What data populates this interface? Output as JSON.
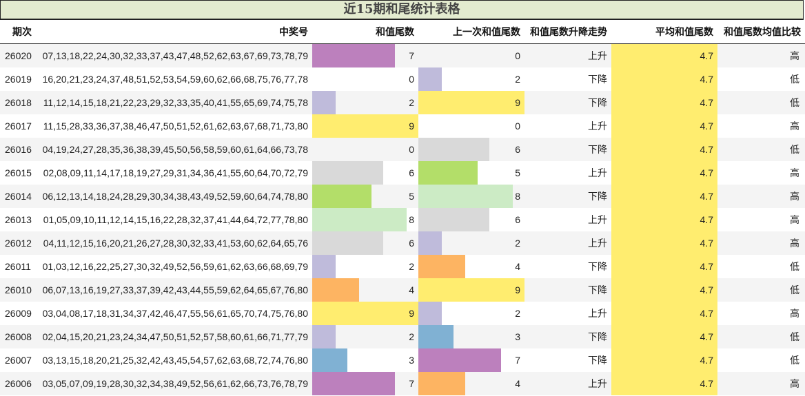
{
  "title": "近15期和尾统计表格",
  "headers": {
    "issue": "期次",
    "numbers": "中奖号",
    "tail": "和值尾数",
    "prev_tail": "上一次和值尾数",
    "trend": "和值尾数升降走势",
    "avg": "平均和值尾数",
    "compare": "和值尾数均值比较"
  },
  "bar_colors": {
    "0": "transparent",
    "2": "#bfbbdb",
    "3": "#80b1d3",
    "4": "#fdb462",
    "5": "#b3de69",
    "6": "#d9d9d9",
    "7": "#bc80bd",
    "8": "#ccebc5",
    "9": "#ffed6f"
  },
  "avg_color": "#ffed6f",
  "rows": [
    {
      "issue": "26020",
      "numbers": "07,13,18,22,24,30,32,33,37,43,47,48,52,62,63,67,69,73,78,79",
      "tail": 7,
      "prev_tail": 0,
      "trend": "上升",
      "avg": "4.7",
      "compare": "高"
    },
    {
      "issue": "26019",
      "numbers": "16,20,21,23,24,37,48,51,52,53,54,59,60,62,66,68,75,76,77,78",
      "tail": 0,
      "prev_tail": 2,
      "trend": "下降",
      "avg": "4.7",
      "compare": "低"
    },
    {
      "issue": "26018",
      "numbers": "11,12,14,15,18,21,22,23,29,32,33,35,40,41,55,65,69,74,75,78",
      "tail": 2,
      "prev_tail": 9,
      "trend": "下降",
      "avg": "4.7",
      "compare": "低"
    },
    {
      "issue": "26017",
      "numbers": "11,15,28,33,36,37,38,46,47,50,51,52,61,62,63,67,68,71,73,80",
      "tail": 9,
      "prev_tail": 0,
      "trend": "上升",
      "avg": "4.7",
      "compare": "高"
    },
    {
      "issue": "26016",
      "numbers": "04,19,24,27,28,35,36,38,39,45,50,56,58,59,60,61,64,66,73,78",
      "tail": 0,
      "prev_tail": 6,
      "trend": "下降",
      "avg": "4.7",
      "compare": "低"
    },
    {
      "issue": "26015",
      "numbers": "02,08,09,11,14,17,18,19,27,29,31,34,36,41,55,60,64,70,72,79",
      "tail": 6,
      "prev_tail": 5,
      "trend": "上升",
      "avg": "4.7",
      "compare": "高"
    },
    {
      "issue": "26014",
      "numbers": "06,12,13,14,18,24,28,29,30,34,38,43,49,52,59,60,64,74,78,80",
      "tail": 5,
      "prev_tail": 8,
      "trend": "下降",
      "avg": "4.7",
      "compare": "高"
    },
    {
      "issue": "26013",
      "numbers": "01,05,09,10,11,12,14,15,16,22,28,32,37,41,44,64,72,77,78,80",
      "tail": 8,
      "prev_tail": 6,
      "trend": "上升",
      "avg": "4.7",
      "compare": "高"
    },
    {
      "issue": "26012",
      "numbers": "04,11,12,15,16,20,21,26,27,28,30,32,33,41,53,60,62,64,65,76",
      "tail": 6,
      "prev_tail": 2,
      "trend": "上升",
      "avg": "4.7",
      "compare": "高"
    },
    {
      "issue": "26011",
      "numbers": "01,03,12,16,22,25,27,30,32,49,52,56,59,61,62,63,66,68,69,79",
      "tail": 2,
      "prev_tail": 4,
      "trend": "下降",
      "avg": "4.7",
      "compare": "低"
    },
    {
      "issue": "26010",
      "numbers": "06,07,13,16,19,27,33,37,39,42,43,44,55,59,62,64,65,67,76,80",
      "tail": 4,
      "prev_tail": 9,
      "trend": "下降",
      "avg": "4.7",
      "compare": "低"
    },
    {
      "issue": "26009",
      "numbers": "03,04,08,17,18,31,34,37,42,46,47,55,56,61,65,70,74,75,76,80",
      "tail": 9,
      "prev_tail": 2,
      "trend": "上升",
      "avg": "4.7",
      "compare": "高"
    },
    {
      "issue": "26008",
      "numbers": "02,04,15,20,21,23,24,34,47,50,51,52,57,58,60,61,66,71,77,79",
      "tail": 2,
      "prev_tail": 3,
      "trend": "下降",
      "avg": "4.7",
      "compare": "低"
    },
    {
      "issue": "26007",
      "numbers": "03,13,15,18,20,21,25,32,42,43,45,54,57,62,63,68,72,74,76,80",
      "tail": 3,
      "prev_tail": 7,
      "trend": "下降",
      "avg": "4.7",
      "compare": "低"
    },
    {
      "issue": "26006",
      "numbers": "03,05,07,09,19,28,30,32,34,38,49,52,56,61,62,66,73,76,78,79",
      "tail": 7,
      "prev_tail": 4,
      "trend": "上升",
      "avg": "4.7",
      "compare": "高"
    }
  ]
}
